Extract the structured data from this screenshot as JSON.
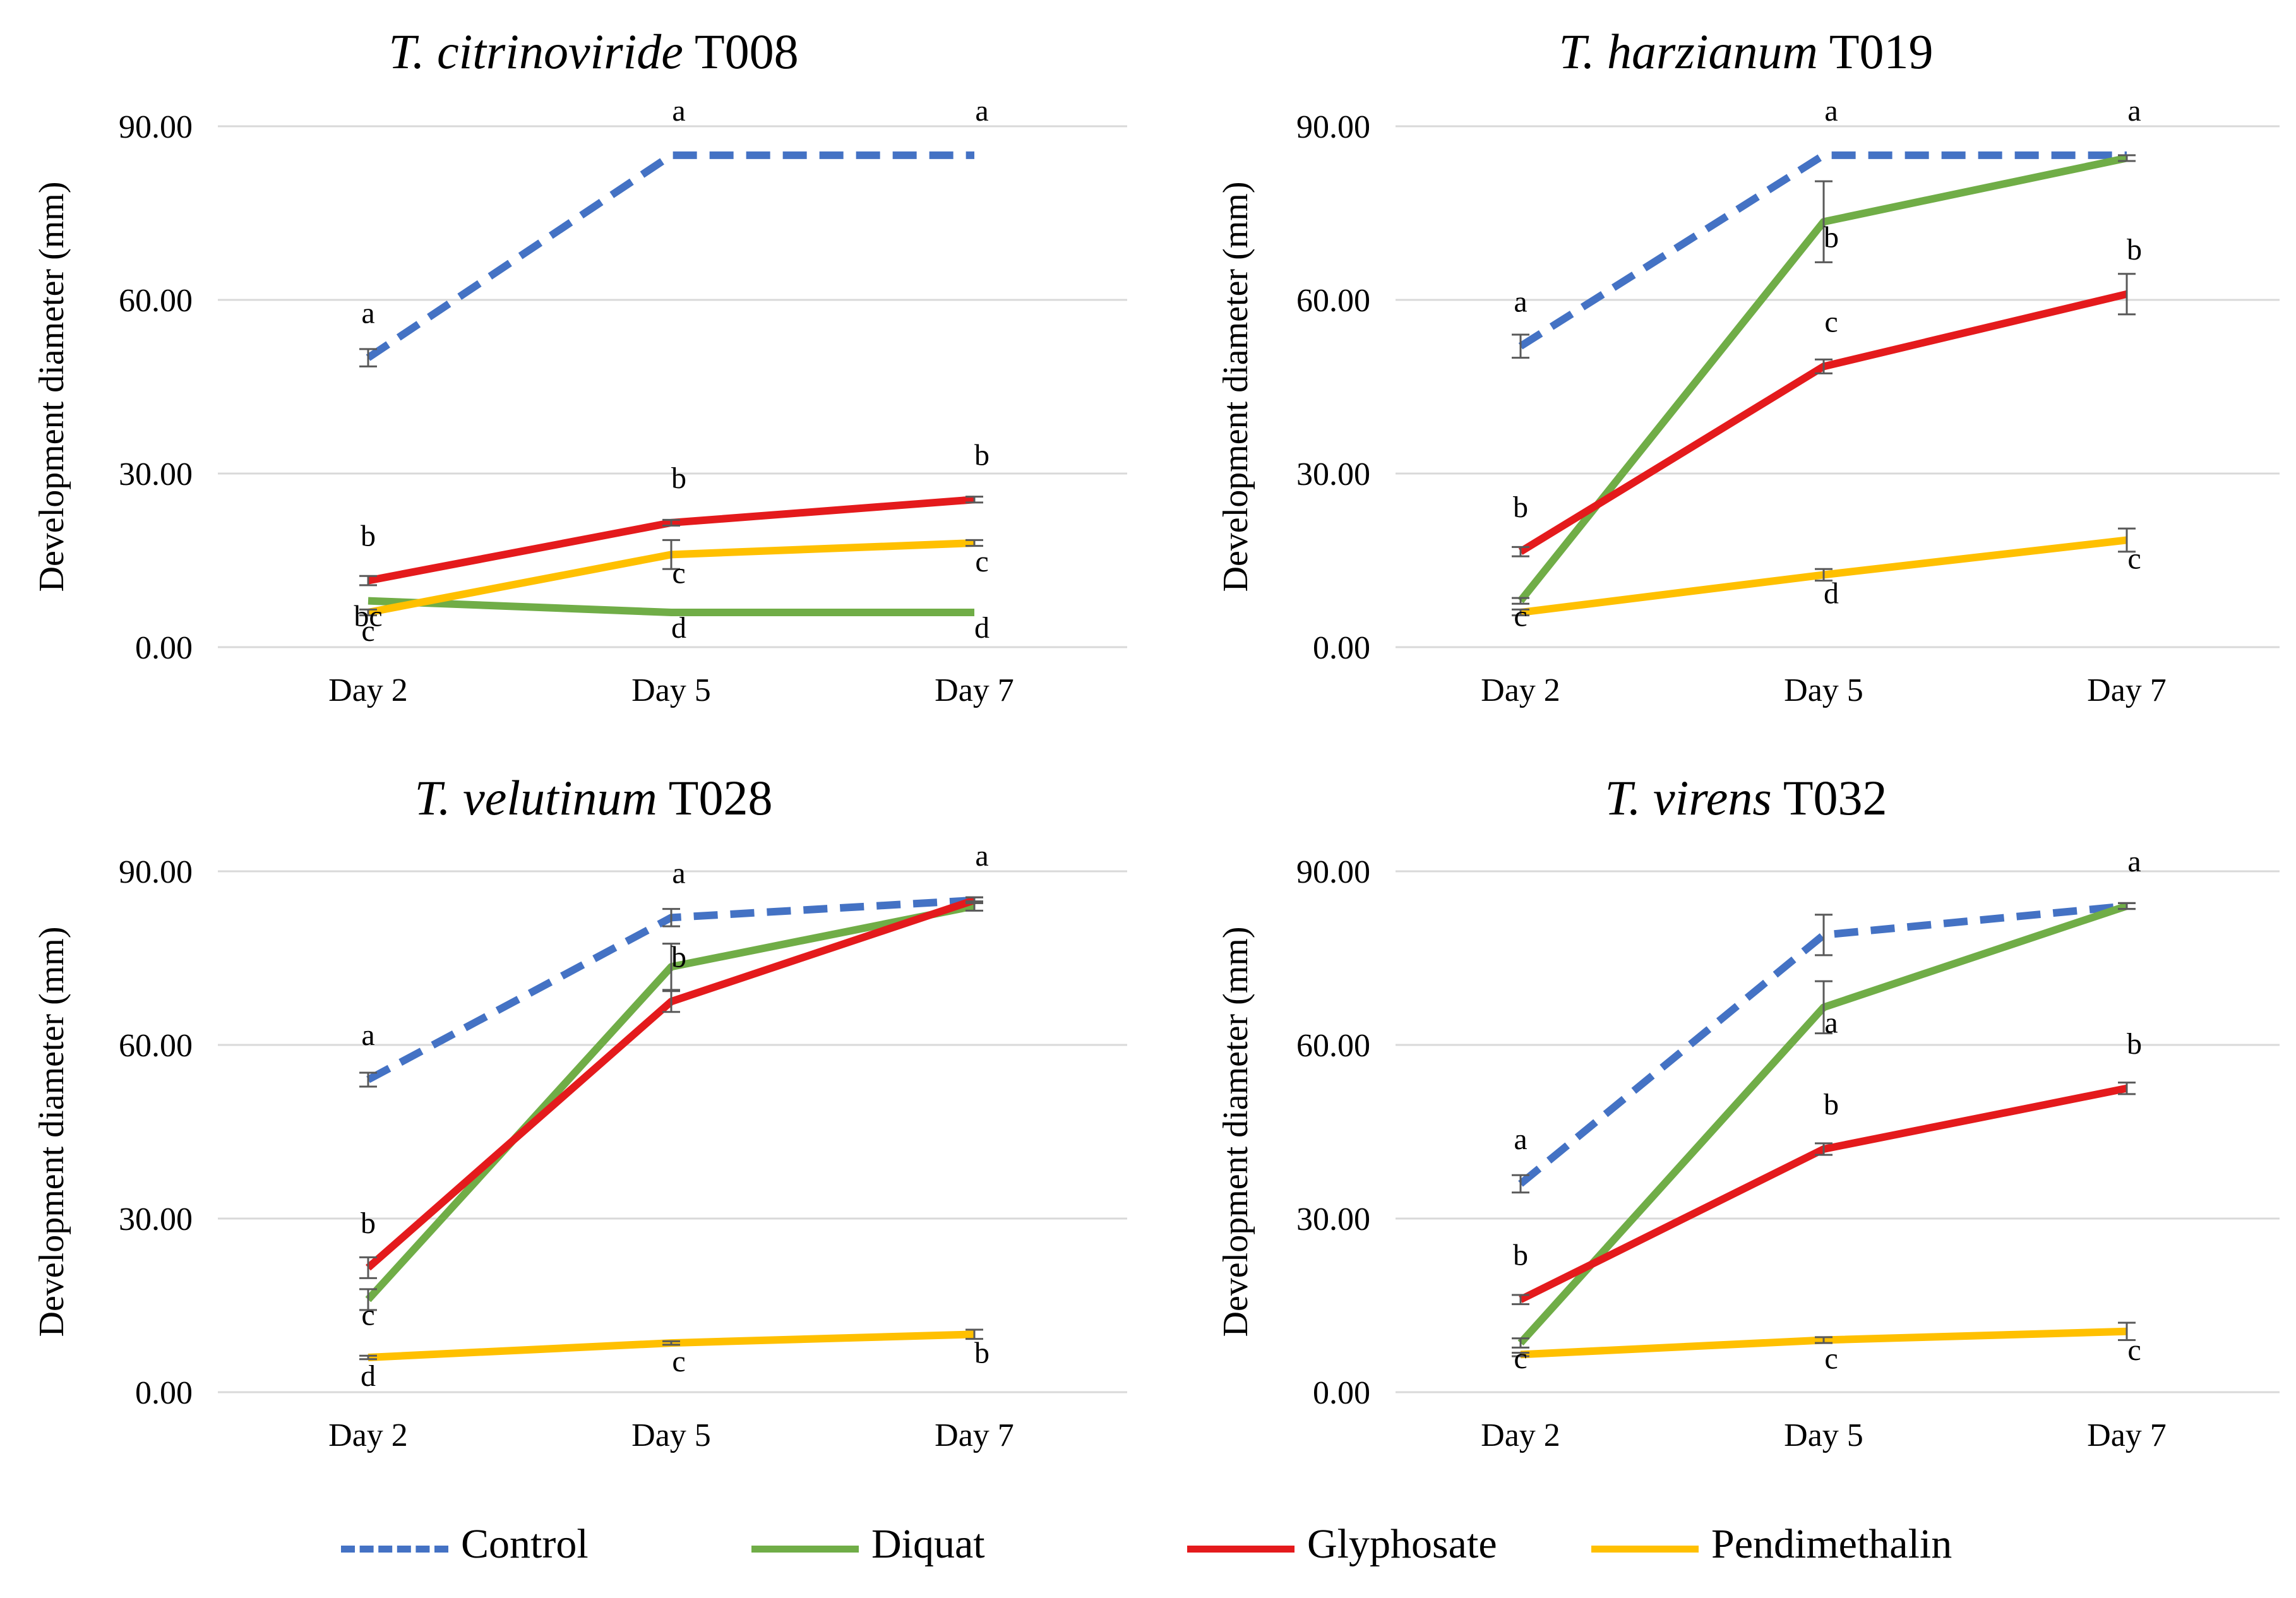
{
  "colors": {
    "Control": "#4472C4",
    "Diquat": "#70AD47",
    "Glyphosate": "#E41A1C",
    "Pendimethalin": "#FFC000",
    "grid": "#D9D9D9",
    "errorbar": "#595959"
  },
  "legend": {
    "items": [
      {
        "name": "Control",
        "style": "dashed"
      },
      {
        "name": "Diquat",
        "style": "solid"
      },
      {
        "name": "Glyphosate",
        "style": "solid"
      },
      {
        "name": "Pendimethalin",
        "style": "solid"
      }
    ]
  },
  "chart_data": [
    {
      "type": "line",
      "title_species": "T. citrinoviride",
      "title_strain": " T008",
      "ylabel": "Development diameter (mm)",
      "xlabel": "",
      "categories": [
        "Day 2",
        "Day 5",
        "Day 7"
      ],
      "ylim": [
        0,
        90
      ],
      "yticks": [
        "0.00",
        "30.00",
        "60.00",
        "90.00"
      ],
      "grid": true,
      "series": [
        {
          "name": "Control",
          "values": [
            50,
            85,
            85
          ],
          "errors": [
            1.5,
            0,
            0
          ],
          "labels": [
            "a",
            "a",
            "a"
          ]
        },
        {
          "name": "Diquat",
          "values": [
            8,
            6,
            6
          ],
          "errors": [
            0,
            0,
            0
          ],
          "labels": [
            "bc",
            "d",
            "d"
          ]
        },
        {
          "name": "Glyphosate",
          "values": [
            11.5,
            21.5,
            25.5
          ],
          "errors": [
            0.8,
            0.5,
            0.5
          ],
          "labels": [
            "b",
            "b",
            "b"
          ]
        },
        {
          "name": "Pendimethalin",
          "values": [
            6,
            16,
            18
          ],
          "errors": [
            0.5,
            2.5,
            0.5
          ],
          "labels": [
            "c",
            "c",
            "c"
          ]
        }
      ]
    },
    {
      "type": "line",
      "title_species": "T. harzianum",
      "title_strain": " T019",
      "ylabel": "Development diameter (mm)",
      "xlabel": "",
      "categories": [
        "Day 2",
        "Day 5",
        "Day 7"
      ],
      "ylim": [
        0,
        90
      ],
      "yticks": [
        "0.00",
        "30.00",
        "60.00",
        "90.00"
      ],
      "grid": true,
      "series": [
        {
          "name": "Control",
          "values": [
            52,
            85,
            85
          ],
          "errors": [
            2,
            0,
            0
          ],
          "labels": [
            "a",
            "a",
            "a"
          ]
        },
        {
          "name": "Diquat",
          "values": [
            8,
            73.5,
            84.5
          ],
          "errors": [
            0.5,
            7,
            0.5
          ],
          "labels": [
            "c",
            "b",
            ""
          ]
        },
        {
          "name": "Glyphosate",
          "values": [
            16.5,
            48.5,
            61
          ],
          "errors": [
            0.8,
            1.2,
            3.5
          ],
          "labels": [
            "b",
            "c",
            "b"
          ]
        },
        {
          "name": "Pendimethalin",
          "values": [
            6,
            12.5,
            18.5
          ],
          "errors": [
            0.5,
            1,
            2
          ],
          "labels": [
            "",
            "d",
            "c"
          ]
        }
      ]
    },
    {
      "type": "line",
      "title_species": "T. velutinum",
      "title_strain": " T028",
      "ylabel": "Development diameter (mm)",
      "xlabel": "",
      "categories": [
        "Day 2",
        "Day 5",
        "Day 7"
      ],
      "ylim": [
        0,
        90
      ],
      "yticks": [
        "0.00",
        "30.00",
        "60.00",
        "90.00"
      ],
      "grid": true,
      "series": [
        {
          "name": "Control",
          "values": [
            54,
            82,
            85
          ],
          "errors": [
            1.2,
            1.5,
            0.5
          ],
          "labels": [
            "a",
            "a",
            "a"
          ]
        },
        {
          "name": "Diquat",
          "values": [
            16,
            73.5,
            84
          ],
          "errors": [
            1.8,
            4,
            0.8
          ],
          "labels": [
            "c",
            "",
            ""
          ]
        },
        {
          "name": "Glyphosate",
          "values": [
            21.5,
            67.5,
            85
          ],
          "errors": [
            1.8,
            1.8,
            0.5
          ],
          "labels": [
            "b",
            "b",
            ""
          ]
        },
        {
          "name": "Pendimethalin",
          "values": [
            6,
            8.5,
            10
          ],
          "errors": [
            0.3,
            0.3,
            0.8
          ],
          "labels": [
            "d",
            "c",
            "b"
          ]
        }
      ]
    },
    {
      "type": "line",
      "title_species": "T. virens",
      "title_strain": " T032",
      "ylabel": "Development diameter (mm)",
      "xlabel": "",
      "categories": [
        "Day 2",
        "Day 5",
        "Day 7"
      ],
      "ylim": [
        0,
        90
      ],
      "yticks": [
        "0.00",
        "30.00",
        "60.00",
        "90.00"
      ],
      "grid": true,
      "series": [
        {
          "name": "Control",
          "values": [
            36,
            79,
            84
          ],
          "errors": [
            1.5,
            3.5,
            0.5
          ],
          "labels": [
            "a",
            "",
            "a"
          ]
        },
        {
          "name": "Diquat",
          "values": [
            8.5,
            66.5,
            84
          ],
          "errors": [
            0.8,
            4.5,
            0.5
          ],
          "labels": [
            "c",
            "a",
            ""
          ]
        },
        {
          "name": "Glyphosate",
          "values": [
            16,
            42,
            52.5
          ],
          "errors": [
            0.8,
            1,
            1
          ],
          "labels": [
            "b",
            "b",
            "b"
          ]
        },
        {
          "name": "Pendimethalin",
          "values": [
            6.5,
            9,
            10.5
          ],
          "errors": [
            0.3,
            0.5,
            1.5
          ],
          "labels": [
            "",
            "c",
            "c"
          ]
        }
      ]
    }
  ]
}
